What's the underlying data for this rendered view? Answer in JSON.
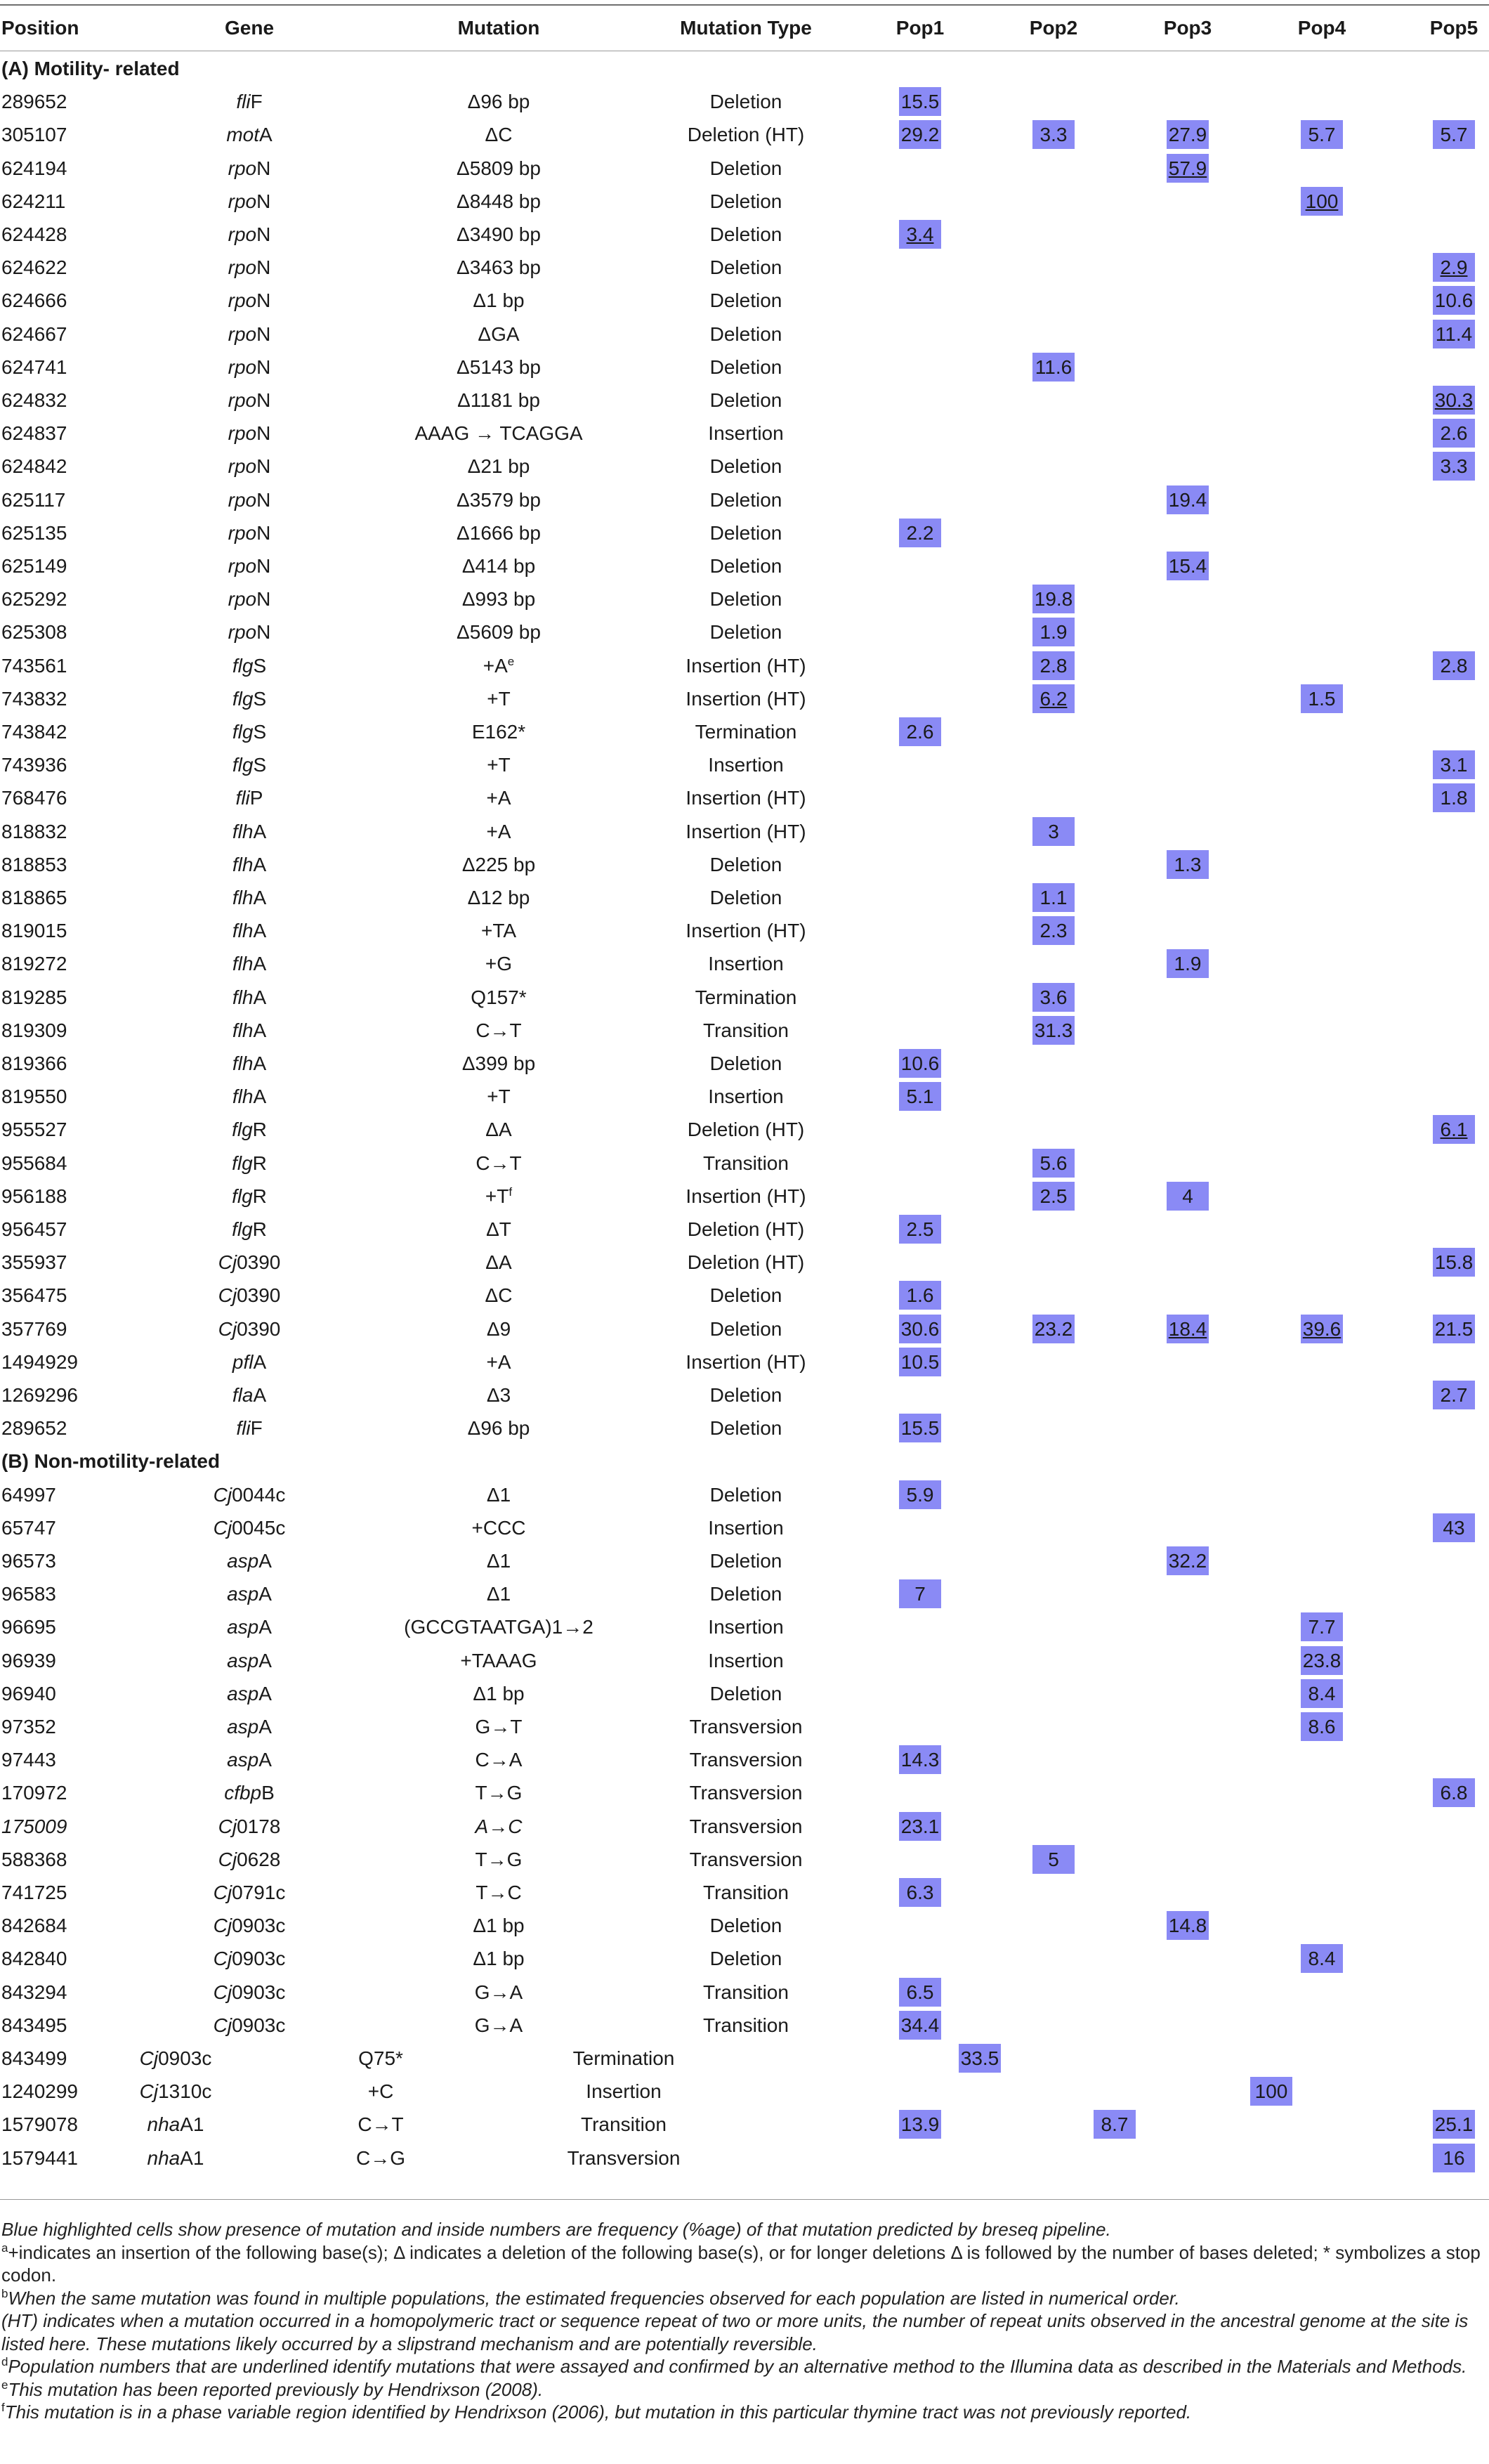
{
  "columns": {
    "position": "Position",
    "gene": "Gene",
    "mutation": "Mutation",
    "mutation_type": "Mutation Type",
    "pops": [
      "Pop1",
      "Pop2",
      "Pop3",
      "Pop4",
      "Pop5"
    ]
  },
  "highlight_color": "#8a8af5",
  "sections": [
    {
      "title": "(A) Motility- related",
      "rows": [
        {
          "pos": "289652",
          "gene": "fli",
          "gene_suffix": "F",
          "mut": "Δ96 bp",
          "type": "Deletion",
          "pops": [
            "15.5",
            "",
            "",
            "",
            ""
          ]
        },
        {
          "pos": "305107",
          "gene": "mot",
          "gene_suffix": "A",
          "mut": "ΔC",
          "type": "Deletion (HT)",
          "pops": [
            "29.2",
            "3.3",
            "27.9",
            "5.7",
            "5.7"
          ]
        },
        {
          "pos": "624194",
          "gene": "rpo",
          "gene_suffix": "N",
          "mut": "Δ5809 bp",
          "type": "Deletion",
          "pops": [
            "",
            "",
            "57.9",
            "",
            ""
          ],
          "u": [
            2
          ]
        },
        {
          "pos": "624211",
          "gene": "rpo",
          "gene_suffix": "N",
          "mut": "Δ8448 bp",
          "type": "Deletion",
          "pops": [
            "",
            "",
            "",
            "100",
            ""
          ],
          "u": [
            3
          ]
        },
        {
          "pos": "624428",
          "gene": "rpo",
          "gene_suffix": "N",
          "mut": "Δ3490 bp",
          "type": "Deletion",
          "pops": [
            "3.4",
            "",
            "",
            "",
            ""
          ],
          "u": [
            0
          ]
        },
        {
          "pos": "624622",
          "gene": "rpo",
          "gene_suffix": "N",
          "mut": "Δ3463 bp",
          "type": "Deletion",
          "pops": [
            "",
            "",
            "",
            "",
            "2.9"
          ],
          "u": [
            4
          ]
        },
        {
          "pos": "624666",
          "gene": "rpo",
          "gene_suffix": "N",
          "mut": "Δ1 bp",
          "type": "Deletion",
          "pops": [
            "",
            "",
            "",
            "",
            "10.6"
          ]
        },
        {
          "pos": "624667",
          "gene": "rpo",
          "gene_suffix": "N",
          "mut": "ΔGA",
          "type": "Deletion",
          "pops": [
            "",
            "",
            "",
            "",
            "11.4"
          ]
        },
        {
          "pos": "624741",
          "gene": "rpo",
          "gene_suffix": "N",
          "mut": "Δ5143 bp",
          "type": "Deletion",
          "pops": [
            "",
            "11.6",
            "",
            "",
            ""
          ]
        },
        {
          "pos": "624832",
          "gene": "rpo",
          "gene_suffix": "N",
          "mut": "Δ1181 bp",
          "type": "Deletion",
          "pops": [
            "",
            "",
            "",
            "",
            "30.3"
          ],
          "u": [
            4
          ]
        },
        {
          "pos": "624837",
          "gene": "rpo",
          "gene_suffix": "N",
          "mut": "AAAG → TCAGGA",
          "type": "Insertion",
          "pops": [
            "",
            "",
            "",
            "",
            "2.6"
          ]
        },
        {
          "pos": "624842",
          "gene": "rpo",
          "gene_suffix": "N",
          "mut": "Δ21 bp",
          "type": "Deletion",
          "pops": [
            "",
            "",
            "",
            "",
            "3.3"
          ]
        },
        {
          "pos": "625117",
          "gene": "rpo",
          "gene_suffix": "N",
          "mut": "Δ3579 bp",
          "type": "Deletion",
          "pops": [
            "",
            "",
            "19.4",
            "",
            ""
          ]
        },
        {
          "pos": "625135",
          "gene": "rpo",
          "gene_suffix": "N",
          "mut": "Δ1666 bp",
          "type": "Deletion",
          "pops": [
            "2.2",
            "",
            "",
            "",
            ""
          ]
        },
        {
          "pos": "625149",
          "gene": "rpo",
          "gene_suffix": "N",
          "mut": "Δ414 bp",
          "type": "Deletion",
          "pops": [
            "",
            "",
            "15.4",
            "",
            ""
          ]
        },
        {
          "pos": "625292",
          "gene": "rpo",
          "gene_suffix": "N",
          "mut": "Δ993 bp",
          "type": "Deletion",
          "pops": [
            "",
            "19.8",
            "",
            "",
            ""
          ]
        },
        {
          "pos": "625308",
          "gene": "rpo",
          "gene_suffix": "N",
          "mut": "Δ5609 bp",
          "type": "Deletion",
          "pops": [
            "",
            "1.9",
            "",
            "",
            ""
          ]
        },
        {
          "pos": "743561",
          "gene": "flg",
          "gene_suffix": "S",
          "mut": "+A",
          "mut_sup": "e",
          "type": "Insertion (HT)",
          "pops": [
            "",
            "2.8",
            "",
            "",
            "2.8"
          ]
        },
        {
          "pos": "743832",
          "gene": "flg",
          "gene_suffix": "S",
          "mut": "+T",
          "type": "Insertion (HT)",
          "pops": [
            "",
            "6.2",
            "",
            "1.5",
            ""
          ],
          "u": [
            1
          ]
        },
        {
          "pos": "743842",
          "gene": "flg",
          "gene_suffix": "S",
          "mut": "E162*",
          "type": "Termination",
          "pops": [
            "2.6",
            "",
            "",
            "",
            ""
          ]
        },
        {
          "pos": "743936",
          "gene": "flg",
          "gene_suffix": "S",
          "mut": "+T",
          "type": "Insertion",
          "pops": [
            "",
            "",
            "",
            "",
            "3.1"
          ]
        },
        {
          "pos": "768476",
          "gene": "fli",
          "gene_suffix": "P",
          "mut": "+A",
          "type": "Insertion (HT)",
          "pops": [
            "",
            "",
            "",
            "",
            "1.8"
          ]
        },
        {
          "pos": "818832",
          "gene": "flh",
          "gene_suffix": "A",
          "mut": "+A",
          "type": "Insertion (HT)",
          "pops": [
            "",
            "3",
            "",
            "",
            ""
          ]
        },
        {
          "pos": "818853",
          "gene": "flh",
          "gene_suffix": "A",
          "mut": "Δ225 bp",
          "type": "Deletion",
          "pops": [
            "",
            "",
            "1.3",
            "",
            ""
          ]
        },
        {
          "pos": "818865",
          "gene": "flh",
          "gene_suffix": "A",
          "mut": "Δ12 bp",
          "type": "Deletion",
          "pops": [
            "",
            "1.1",
            "",
            "",
            ""
          ]
        },
        {
          "pos": "819015",
          "gene": "flh",
          "gene_suffix": "A",
          "mut": "+TA",
          "type": "Insertion (HT)",
          "pops": [
            "",
            "2.3",
            "",
            "",
            ""
          ]
        },
        {
          "pos": "819272",
          "gene": "flh",
          "gene_suffix": "A",
          "mut": "+G",
          "type": "Insertion",
          "pops": [
            "",
            "",
            "1.9",
            "",
            ""
          ]
        },
        {
          "pos": "819285",
          "gene": "flh",
          "gene_suffix": "A",
          "mut": "Q157*",
          "type": "Termination",
          "pops": [
            "",
            "3.6",
            "",
            "",
            ""
          ]
        },
        {
          "pos": "819309",
          "gene": "flh",
          "gene_suffix": "A",
          "mut": "C→T",
          "type": "Transition",
          "pops": [
            "",
            "31.3",
            "",
            "",
            ""
          ]
        },
        {
          "pos": "819366",
          "gene": "flh",
          "gene_suffix": "A",
          "mut": "Δ399 bp",
          "type": "Deletion",
          "pops": [
            "10.6",
            "",
            "",
            "",
            ""
          ]
        },
        {
          "pos": "819550",
          "gene": "flh",
          "gene_suffix": "A",
          "mut": "+T",
          "type": "Insertion",
          "pops": [
            "5.1",
            "",
            "",
            "",
            ""
          ]
        },
        {
          "pos": "955527",
          "gene": "flg",
          "gene_suffix": "R",
          "mut": "ΔA",
          "type": "Deletion (HT)",
          "pops": [
            "",
            "",
            "",
            "",
            "6.1"
          ],
          "u": [
            4
          ]
        },
        {
          "pos": "955684",
          "gene": "flg",
          "gene_suffix": "R",
          "mut": "C→T",
          "type": "Transition",
          "pops": [
            "",
            "5.6",
            "",
            "",
            ""
          ]
        },
        {
          "pos": "956188",
          "gene": "flg",
          "gene_suffix": "R",
          "mut": "+T",
          "mut_sup": "f",
          "type": "Insertion (HT)",
          "pops": [
            "",
            "2.5",
            "4",
            "",
            ""
          ]
        },
        {
          "pos": "956457",
          "gene": "flg",
          "gene_suffix": "R",
          "mut": "ΔT",
          "type": "Deletion (HT)",
          "pops": [
            "2.5",
            "",
            "",
            "",
            ""
          ]
        },
        {
          "pos": "355937",
          "gene": "Cj",
          "gene_suffix": "0390",
          "mut": "ΔA",
          "type": "Deletion (HT)",
          "pops": [
            "",
            "",
            "",
            "",
            "15.8"
          ]
        },
        {
          "pos": "356475",
          "gene": "Cj",
          "gene_suffix": "0390",
          "mut": "ΔC",
          "type": "Deletion",
          "pops": [
            "1.6",
            "",
            "",
            "",
            ""
          ]
        },
        {
          "pos": "357769",
          "gene": "Cj",
          "gene_suffix": "0390",
          "mut": "Δ9",
          "type": "Deletion",
          "pops": [
            "30.6",
            "23.2",
            "18.4",
            "39.6",
            "21.5"
          ],
          "u": [
            2,
            3
          ]
        },
        {
          "pos": "1494929",
          "gene": "pfl",
          "gene_suffix": "A",
          "mut": "+A",
          "type": "Insertion (HT)",
          "pops": [
            "10.5",
            "",
            "",
            "",
            ""
          ]
        },
        {
          "pos": "1269296",
          "gene": "fla",
          "gene_suffix": "A",
          "mut": "Δ3",
          "type": "Deletion",
          "pops": [
            "",
            "",
            "",
            "",
            "2.7"
          ]
        },
        {
          "pos": "289652",
          "gene": "fli",
          "gene_suffix": "F",
          "mut": "Δ96 bp",
          "type": "Deletion",
          "pops": [
            "15.5",
            "",
            "",
            "",
            ""
          ]
        }
      ]
    },
    {
      "title": "(B) Non-motility-related",
      "rows": [
        {
          "pos": "64997",
          "gene": "Cj",
          "gene_suffix": "0044c",
          "mut": "Δ1",
          "type": "Deletion",
          "pops": [
            "5.9",
            "",
            "",
            "",
            ""
          ]
        },
        {
          "pos": "65747",
          "gene": "Cj",
          "gene_suffix": "0045c",
          "mut": "+CCC",
          "type": "Insertion",
          "pops": [
            "",
            "",
            "",
            "",
            "43"
          ]
        },
        {
          "pos": "96573",
          "gene": "asp",
          "gene_suffix": "A",
          "mut": "Δ1",
          "type": "Deletion",
          "pops": [
            "",
            "",
            "32.2",
            "",
            ""
          ]
        },
        {
          "pos": "96583",
          "gene": "asp",
          "gene_suffix": "A",
          "mut": "Δ1",
          "type": "Deletion",
          "pops": [
            "7",
            "",
            "",
            "",
            ""
          ]
        },
        {
          "pos": "96695",
          "gene": "asp",
          "gene_suffix": "A",
          "mut": "(GCCGTAATGA)1→2",
          "type": "Insertion",
          "pops": [
            "",
            "",
            "",
            "7.7",
            ""
          ]
        },
        {
          "pos": "96939",
          "gene": "asp",
          "gene_suffix": "A",
          "mut": "+TAAAG",
          "type": "Insertion",
          "pops": [
            "",
            "",
            "",
            "23.8",
            ""
          ]
        },
        {
          "pos": "96940",
          "gene": "asp",
          "gene_suffix": "A",
          "mut": "Δ1 bp",
          "type": "Deletion",
          "pops": [
            "",
            "",
            "",
            "8.4",
            ""
          ]
        },
        {
          "pos": "97352",
          "gene": "asp",
          "gene_suffix": "A",
          "mut": "G→T",
          "type": "Transversion",
          "pops": [
            "",
            "",
            "",
            "8.6",
            ""
          ]
        },
        {
          "pos": "97443",
          "gene": "asp",
          "gene_suffix": "A",
          "mut": "C→A",
          "type": "Transversion",
          "pops": [
            "14.3",
            "",
            "",
            "",
            ""
          ]
        },
        {
          "pos": "170972",
          "gene": "cfbp",
          "gene_suffix": "B",
          "mut": "T→G",
          "type": "Transversion",
          "pops": [
            "",
            "",
            "",
            "",
            "6.8"
          ]
        },
        {
          "pos": "175009",
          "pos_italic": true,
          "gene": "Cj",
          "gene_suffix": "0178",
          "mut": "A→C",
          "mut_italic": true,
          "type": "Transversion",
          "pops": [
            "23.1",
            "",
            "",
            "",
            ""
          ]
        },
        {
          "pos": "588368",
          "gene": "Cj",
          "gene_suffix": "0628",
          "mut": "T→G",
          "type": "Transversion",
          "pops": [
            "",
            "5",
            "",
            "",
            ""
          ]
        },
        {
          "pos": "741725",
          "gene": "Cj",
          "gene_suffix": "0791c",
          "mut": "T→C",
          "type": "Transition",
          "pops": [
            "6.3",
            "",
            "",
            "",
            ""
          ]
        },
        {
          "pos": "842684",
          "gene": "Cj",
          "gene_suffix": "0903c",
          "mut": "Δ1 bp",
          "type": "Deletion",
          "pops": [
            "",
            "",
            "14.8",
            "",
            ""
          ]
        },
        {
          "pos": "842840",
          "gene": "Cj",
          "gene_suffix": "0903c",
          "mut": "Δ1 bp",
          "type": "Deletion",
          "pops": [
            "",
            "",
            "",
            "8.4",
            ""
          ]
        },
        {
          "pos": "843294",
          "gene": "Cj",
          "gene_suffix": "0903c",
          "mut": "G→A",
          "type": "Transition",
          "pops": [
            "6.5",
            "",
            "",
            "",
            ""
          ]
        },
        {
          "pos": "843495",
          "gene": "Cj",
          "gene_suffix": "0903c",
          "mut": "G→A",
          "type": "Transition",
          "pops": [
            "34.4",
            "",
            "",
            "",
            ""
          ]
        }
      ]
    }
  ],
  "shifted_rows": [
    {
      "pos": "843499",
      "gene": "Cj",
      "gene_suffix": "0903c",
      "mut": "Q75*",
      "type": "Termination",
      "cells": [
        {
          "value": "33.5",
          "slot": 0
        }
      ]
    },
    {
      "pos": "1240299",
      "gene": "Cj",
      "gene_suffix": "1310c",
      "mut": "+C",
      "type": "Insertion",
      "cells": [
        {
          "value": "100",
          "slot": 3
        }
      ]
    },
    {
      "pos": "1579078",
      "gene": "nha",
      "gene_suffix": "A1",
      "mut": "C→T",
      "type": "Transition",
      "cells": [
        {
          "value": "13.9",
          "slot": 1
        },
        {
          "value": "8.7",
          "slot": 2
        },
        {
          "value": "25.1",
          "slot": 5
        }
      ]
    },
    {
      "pos": "1579441",
      "gene": "nha",
      "gene_suffix": "A1",
      "mut": "C→G",
      "type": "Transversion",
      "cells": [
        {
          "value": "16",
          "slot": 5
        }
      ]
    }
  ],
  "notes": {
    "main": "Blue highlighted cells show presence of mutation and inside numbers are frequency (%age) of that mutation predicted by breseq pipeline.",
    "a_sup": "a",
    "a": "+indicates an insertion of the following base(s); Δ indicates a deletion of the following base(s), or for longer deletions Δ is followed by the number of bases deleted; * symbolizes a stop codon.",
    "b_sup": "b",
    "b": "When the same mutation was found in multiple populations, the estimated frequencies observed for each population are listed in numerical order.",
    "c": "(HT) indicates when a mutation occurred in a homopolymeric tract or sequence repeat of two or more units, the number of repeat units observed in the ancestral genome at the site is listed here. These mutations likely occurred by a slipstrand mechanism and are potentially reversible.",
    "d_sup": "d",
    "d": "Population numbers that are underlined identify mutations that were assayed and confirmed by an alternative method to the Illumina data as described in the Materials and Methods.",
    "e_sup": "e",
    "e": "This mutation has been reported previously by Hendrixson (2008).",
    "f_sup": "f",
    "f": "This mutation is in a phase variable region identified by Hendrixson (2006), but mutation in this particular thymine tract was not previously reported."
  }
}
